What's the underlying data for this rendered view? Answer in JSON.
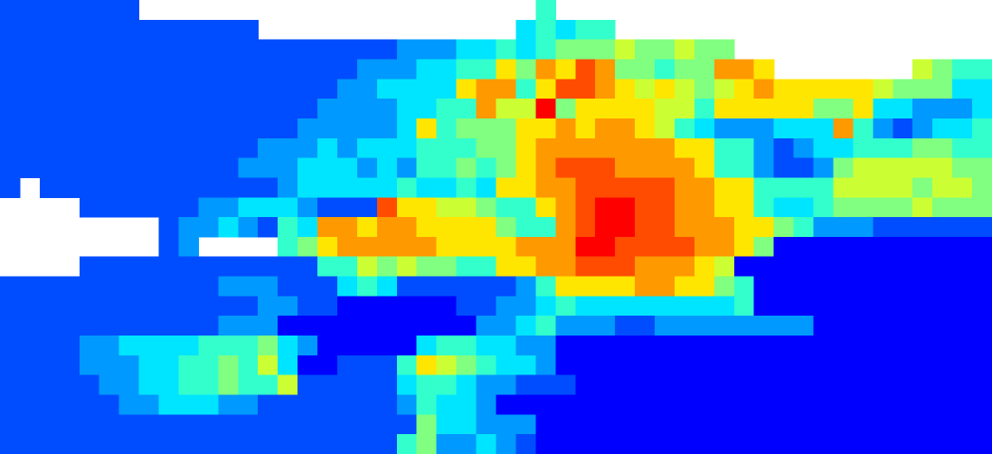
{
  "chart_data": {
    "type": "heatmap",
    "colormap": "jet",
    "clim": [
      0,
      10
    ],
    "values": [
      [
        1,
        1,
        1,
        1,
        1,
        1,
        1,
        null,
        null,
        null,
        null,
        null,
        null,
        null,
        null,
        null,
        null,
        null,
        null,
        null,
        null,
        null,
        null,
        null,
        null,
        null,
        null,
        4,
        null,
        null,
        null,
        null,
        null,
        null,
        null,
        null,
        null,
        null,
        null,
        null,
        null,
        null,
        null,
        null,
        null,
        null,
        null,
        null,
        null,
        null
      ],
      [
        1,
        1,
        1,
        1,
        1,
        1,
        1,
        1,
        1,
        1,
        1,
        1,
        1,
        null,
        null,
        null,
        null,
        null,
        null,
        null,
        null,
        null,
        null,
        null,
        null,
        null,
        3,
        4,
        3,
        4,
        4,
        null,
        null,
        null,
        null,
        null,
        null,
        null,
        null,
        null,
        null,
        null,
        null,
        null,
        null,
        null,
        null,
        null,
        null,
        null
      ],
      [
        1,
        1,
        1,
        1,
        1,
        1,
        1,
        1,
        1,
        1,
        1,
        1,
        1,
        1,
        1,
        1,
        1,
        1,
        1,
        1,
        2,
        2,
        2,
        3,
        3,
        4,
        3,
        4,
        5,
        5,
        5,
        6,
        5,
        5,
        6,
        5,
        5,
        null,
        null,
        null,
        null,
        null,
        null,
        null,
        null,
        null,
        null,
        null,
        null,
        null
      ],
      [
        1,
        1,
        1,
        1,
        1,
        1,
        1,
        1,
        1,
        1,
        1,
        1,
        1,
        1,
        1,
        1,
        1,
        1,
        2,
        2,
        2,
        3,
        3,
        4,
        4,
        7,
        5,
        8,
        7,
        9,
        8,
        5,
        5,
        4,
        5,
        5,
        8,
        8,
        7,
        null,
        null,
        null,
        null,
        null,
        null,
        null,
        6,
        5,
        4,
        4
      ],
      [
        1,
        1,
        1,
        1,
        1,
        1,
        1,
        1,
        1,
        1,
        1,
        1,
        1,
        1,
        1,
        1,
        1,
        2,
        2,
        3,
        3,
        3,
        3,
        7,
        8,
        8,
        4,
        7,
        9,
        9,
        8,
        7,
        6,
        7,
        6,
        5,
        6,
        7,
        8,
        7,
        7,
        7,
        7,
        7,
        6,
        5,
        5,
        5,
        3,
        3
      ],
      [
        1,
        1,
        1,
        1,
        1,
        1,
        1,
        1,
        1,
        1,
        1,
        1,
        1,
        1,
        1,
        1,
        2,
        2,
        2,
        2,
        3,
        3,
        4,
        4,
        8,
        6,
        6,
        10,
        5,
        7,
        7,
        7,
        7,
        6,
        6,
        4,
        7,
        7,
        7,
        7,
        7,
        5,
        5,
        7,
        3,
        3,
        2,
        2,
        2,
        3
      ],
      [
        1,
        1,
        1,
        1,
        1,
        1,
        1,
        1,
        1,
        1,
        1,
        1,
        1,
        1,
        1,
        2,
        2,
        2,
        2,
        2,
        3,
        7,
        4,
        5,
        5,
        5,
        7,
        7,
        8,
        7,
        8,
        8,
        7,
        6,
        4,
        3,
        2,
        2,
        2,
        3,
        3,
        3,
        8,
        4,
        2,
        1,
        2,
        3,
        3,
        4
      ],
      [
        1,
        1,
        1,
        1,
        1,
        1,
        1,
        1,
        1,
        1,
        1,
        1,
        1,
        2,
        2,
        2,
        3,
        2,
        3,
        3,
        3,
        4,
        4,
        4,
        5,
        5,
        7,
        8,
        8,
        8,
        8,
        8,
        8,
        8,
        7,
        7,
        4,
        4,
        2,
        1,
        2,
        3,
        3,
        4,
        4,
        4,
        5,
        5,
        4,
        4
      ],
      [
        1,
        1,
        1,
        1,
        1,
        1,
        1,
        1,
        1,
        1,
        1,
        1,
        2,
        2,
        2,
        3,
        3,
        3,
        2,
        3,
        2,
        4,
        4,
        5,
        4,
        5,
        7,
        8,
        9,
        9,
        9,
        8,
        8,
        8,
        8,
        7,
        4,
        4,
        2,
        1,
        1,
        2,
        5,
        6,
        6,
        6,
        6,
        6,
        5,
        5
      ],
      [
        1,
        null,
        1,
        1,
        1,
        1,
        1,
        1,
        1,
        1,
        1,
        1,
        1,
        1,
        2,
        3,
        3,
        3,
        3,
        3,
        4,
        3,
        3,
        4,
        3,
        7,
        7,
        8,
        8,
        9,
        9,
        9,
        9,
        9,
        8,
        8,
        7,
        7,
        4,
        4,
        4,
        4,
        6,
        6,
        6,
        6,
        5,
        6,
        6,
        5
      ],
      [
        null,
        null,
        null,
        null,
        1,
        1,
        1,
        1,
        1,
        1,
        2,
        2,
        3,
        3,
        3,
        2,
        1,
        1,
        1,
        9,
        7,
        7,
        6,
        6,
        5,
        4,
        4,
        7,
        8,
        9,
        10,
        10,
        9,
        9,
        8,
        8,
        7,
        7,
        4,
        3,
        3,
        4,
        5,
        5,
        5,
        5,
        6,
        5,
        5,
        5
      ],
      [
        null,
        null,
        null,
        null,
        null,
        null,
        null,
        null,
        1,
        2,
        2,
        3,
        2,
        1,
        4,
        3,
        8,
        8,
        7,
        8,
        8,
        7,
        7,
        7,
        7,
        5,
        4,
        4,
        8,
        9,
        10,
        10,
        9,
        9,
        8,
        8,
        8,
        7,
        7,
        5,
        4,
        2,
        2,
        2,
        1,
        1,
        1,
        1,
        1,
        1
      ],
      [
        null,
        null,
        null,
        null,
        null,
        null,
        null,
        null,
        1,
        2,
        null,
        null,
        null,
        null,
        4,
        5,
        7,
        8,
        8,
        8,
        8,
        8,
        7,
        7,
        7,
        7,
        8,
        8,
        8,
        10,
        10,
        9,
        9,
        9,
        9,
        8,
        8,
        7,
        5,
        0,
        0,
        0,
        0,
        0,
        0,
        0,
        0,
        0,
        0,
        0
      ],
      [
        null,
        null,
        null,
        null,
        1,
        1,
        1,
        1,
        1,
        1,
        1,
        1,
        1,
        1,
        1,
        1,
        4,
        4,
        6,
        5,
        6,
        5,
        5,
        4,
        4,
        7,
        7,
        8,
        8,
        9,
        9,
        9,
        8,
        8,
        8,
        7,
        6,
        0,
        0,
        0,
        0,
        0,
        0,
        0,
        0,
        0,
        0,
        0,
        0,
        0
      ],
      [
        1,
        1,
        1,
        1,
        1,
        1,
        1,
        1,
        1,
        1,
        1,
        2,
        2,
        2,
        1,
        1,
        1,
        3,
        4,
        3,
        1,
        1,
        1,
        1,
        1,
        1,
        2,
        4,
        7,
        7,
        7,
        7,
        8,
        8,
        7,
        7,
        5,
        4,
        0,
        0,
        0,
        0,
        0,
        0,
        0,
        0,
        0,
        0,
        0,
        0
      ],
      [
        1,
        1,
        1,
        1,
        1,
        1,
        1,
        1,
        1,
        1,
        1,
        1,
        1,
        2,
        2,
        1,
        1,
        0,
        0,
        0,
        0,
        0,
        0,
        1,
        1,
        2,
        2,
        3,
        4,
        3,
        3,
        3,
        3,
        3,
        3,
        3,
        3,
        4,
        0,
        0,
        0,
        0,
        0,
        0,
        0,
        0,
        0,
        0,
        0,
        0
      ],
      [
        1,
        1,
        1,
        1,
        1,
        1,
        1,
        1,
        1,
        1,
        1,
        2,
        2,
        2,
        0,
        0,
        0,
        0,
        0,
        0,
        0,
        0,
        0,
        0,
        2,
        2,
        3,
        4,
        2,
        2,
        2,
        1,
        1,
        2,
        2,
        2,
        2,
        2,
        2,
        2,
        2,
        0,
        0,
        0,
        0,
        0,
        0,
        0,
        0,
        0
      ],
      [
        1,
        1,
        1,
        1,
        2,
        2,
        3,
        3,
        3,
        3,
        4,
        4,
        4,
        5,
        3,
        2,
        0,
        0,
        0,
        0,
        0,
        3,
        4,
        4,
        3,
        3,
        2,
        2,
        0,
        0,
        0,
        0,
        0,
        0,
        0,
        0,
        0,
        0,
        0,
        0,
        0,
        0,
        0,
        0,
        0,
        0,
        0,
        0,
        0,
        0
      ],
      [
        1,
        1,
        1,
        1,
        2,
        2,
        2,
        3,
        3,
        4,
        4,
        5,
        4,
        6,
        3,
        0,
        0,
        1,
        1,
        1,
        4,
        7,
        6,
        5,
        4,
        3,
        3,
        2,
        0,
        0,
        0,
        0,
        0,
        0,
        0,
        0,
        0,
        0,
        0,
        0,
        0,
        0,
        0,
        0,
        0,
        0,
        0,
        0,
        0,
        0
      ],
      [
        1,
        1,
        1,
        1,
        1,
        2,
        2,
        3,
        3,
        4,
        4,
        5,
        4,
        4,
        6,
        1,
        1,
        1,
        1,
        1,
        3,
        4,
        4,
        3,
        2,
        2,
        1,
        1,
        1,
        0,
        0,
        0,
        0,
        0,
        0,
        0,
        0,
        0,
        0,
        0,
        0,
        0,
        0,
        0,
        0,
        0,
        0,
        0,
        0,
        0
      ],
      [
        1,
        1,
        1,
        1,
        1,
        1,
        2,
        2,
        3,
        3,
        3,
        2,
        2,
        1,
        1,
        1,
        1,
        1,
        1,
        1,
        2,
        4,
        3,
        3,
        2,
        0,
        0,
        0,
        0,
        0,
        0,
        0,
        0,
        0,
        0,
        0,
        0,
        0,
        0,
        0,
        0,
        0,
        0,
        0,
        0,
        0,
        0,
        0,
        0,
        0
      ],
      [
        1,
        1,
        1,
        1,
        1,
        1,
        1,
        1,
        1,
        1,
        1,
        1,
        1,
        1,
        1,
        1,
        1,
        1,
        1,
        1,
        1,
        5,
        3,
        3,
        2,
        2,
        2,
        0,
        0,
        0,
        0,
        0,
        0,
        0,
        0,
        0,
        0,
        0,
        0,
        0,
        0,
        0,
        0,
        0,
        0,
        0,
        0,
        0,
        0,
        0
      ],
      [
        1,
        1,
        1,
        1,
        1,
        1,
        1,
        1,
        1,
        1,
        1,
        1,
        1,
        1,
        1,
        1,
        1,
        1,
        1,
        1,
        4,
        5,
        2,
        2,
        3,
        2,
        1,
        0,
        0,
        0,
        0,
        0,
        0,
        0,
        0,
        0,
        0,
        0,
        0,
        0,
        0,
        0,
        0,
        0,
        0,
        0,
        0,
        0,
        0,
        0
      ]
    ]
  }
}
